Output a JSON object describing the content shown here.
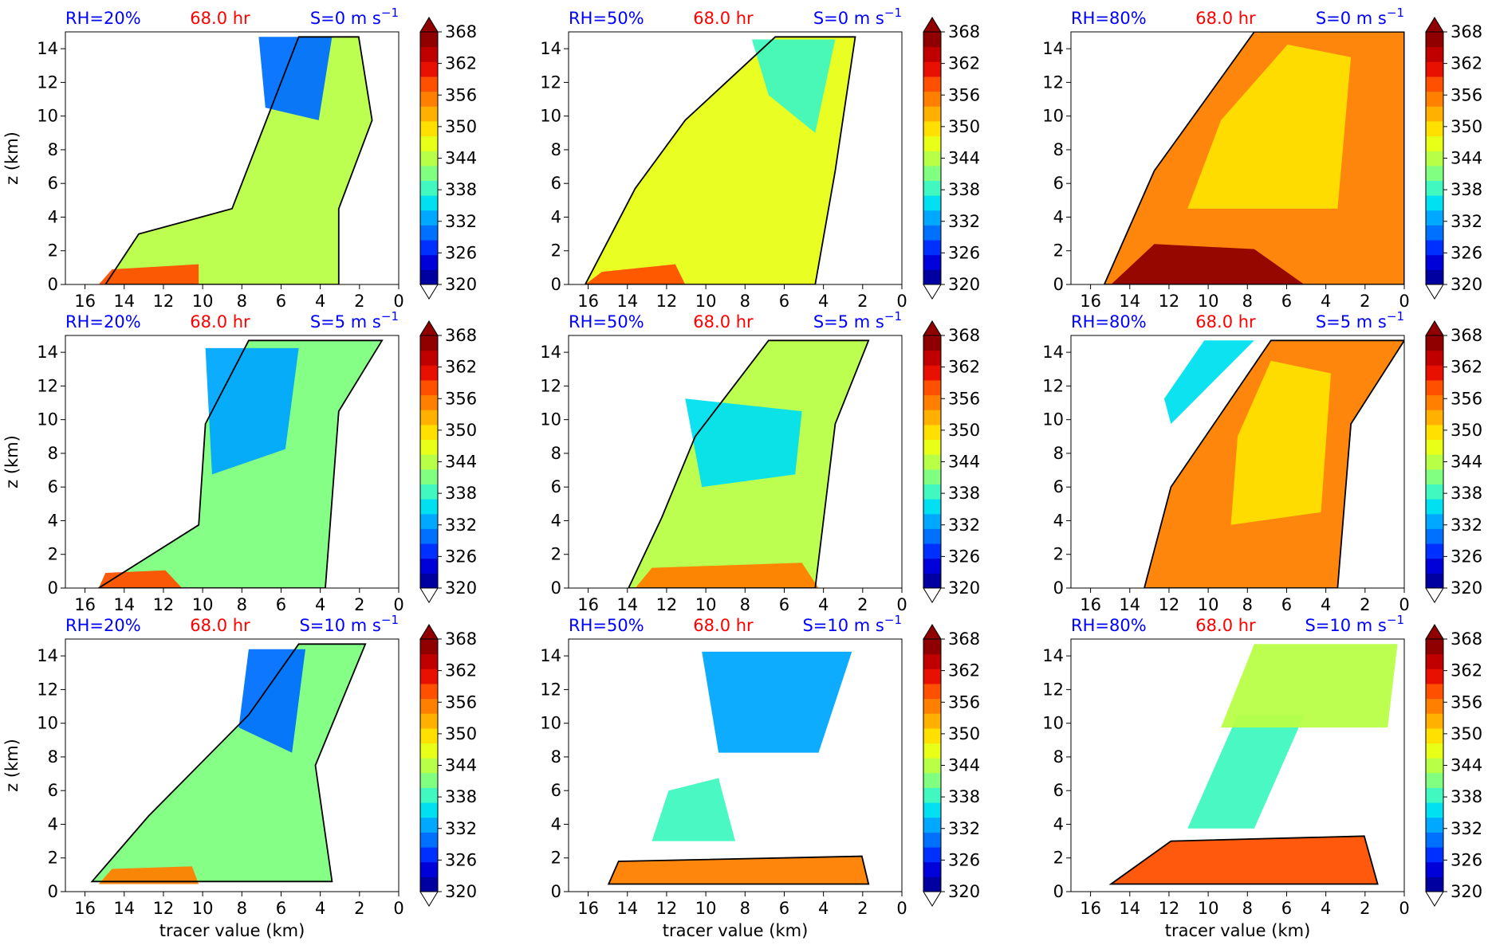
{
  "figure": {
    "colors": {
      "rh_label": "#0000ff",
      "time_label": "#ff0000",
      "shear_label": "#0000ff",
      "contour": "#000000",
      "colorbar": [
        "#0000a0",
        "#0000d8",
        "#0030ff",
        "#0070ff",
        "#00a8ff",
        "#00e0f0",
        "#40f8c0",
        "#80ff80",
        "#b8ff48",
        "#e8ff18",
        "#ffe000",
        "#ffb000",
        "#ff8000",
        "#ff5000",
        "#e81000",
        "#c00000",
        "#900000"
      ]
    }
  },
  "chart_data": [
    {
      "type": "heatmap",
      "rh_label": "RH=20%",
      "time_label": "68.0 hr",
      "shear_label": "S=0 m s",
      "shear_exp": "−1",
      "xlabel": "",
      "ylabel": "z (km)",
      "xlim": [
        17,
        0
      ],
      "ylim": [
        0,
        15
      ],
      "x_ticks": [
        "16",
        "14",
        "12",
        "10",
        "8",
        "6",
        "4",
        "2",
        "0"
      ],
      "y_ticks": [
        "0",
        "2",
        "4",
        "6",
        "8",
        "10",
        "12",
        "14"
      ],
      "colorbar": {
        "ticks": [
          "320",
          "326",
          "332",
          "338",
          "344",
          "350",
          "356",
          "362",
          "368"
        ],
        "range": [
          320,
          368
        ],
        "extend": "both"
      },
      "series": []
    },
    {
      "type": "heatmap",
      "rh_label": "RH=50%",
      "time_label": "68.0 hr",
      "shear_label": "S=0 m s",
      "shear_exp": "−1",
      "xlabel": "",
      "ylabel": "",
      "xlim": [
        17,
        0
      ],
      "ylim": [
        0,
        15
      ],
      "x_ticks": [
        "16",
        "14",
        "12",
        "10",
        "8",
        "6",
        "4",
        "2",
        "0"
      ],
      "y_ticks": [
        "0",
        "2",
        "4",
        "6",
        "8",
        "10",
        "12",
        "14"
      ],
      "colorbar": {
        "ticks": [
          "320",
          "326",
          "332",
          "338",
          "344",
          "350",
          "356",
          "362",
          "368"
        ],
        "range": [
          320,
          368
        ],
        "extend": "both"
      },
      "series": []
    },
    {
      "type": "heatmap",
      "rh_label": "RH=80%",
      "time_label": "68.0 hr",
      "shear_label": "S=0 m s",
      "shear_exp": "−1",
      "xlabel": "",
      "ylabel": "",
      "xlim": [
        17,
        0
      ],
      "ylim": [
        0,
        15
      ],
      "x_ticks": [
        "16",
        "14",
        "12",
        "10",
        "8",
        "6",
        "4",
        "2",
        "0"
      ],
      "y_ticks": [
        "0",
        "2",
        "4",
        "6",
        "8",
        "10",
        "12",
        "14"
      ],
      "colorbar": {
        "ticks": [
          "320",
          "326",
          "332",
          "338",
          "344",
          "350",
          "356",
          "362",
          "368"
        ],
        "range": [
          320,
          368
        ],
        "extend": "both"
      },
      "series": []
    },
    {
      "type": "heatmap",
      "rh_label": "RH=20%",
      "time_label": "68.0 hr",
      "shear_label": "S=5 m s",
      "shear_exp": "−1",
      "xlabel": "",
      "ylabel": "z (km)",
      "xlim": [
        17,
        0
      ],
      "ylim": [
        0,
        15
      ],
      "x_ticks": [
        "16",
        "14",
        "12",
        "10",
        "8",
        "6",
        "4",
        "2",
        "0"
      ],
      "y_ticks": [
        "0",
        "2",
        "4",
        "6",
        "8",
        "10",
        "12",
        "14"
      ],
      "colorbar": {
        "ticks": [
          "320",
          "326",
          "332",
          "338",
          "344",
          "350",
          "356",
          "362",
          "368"
        ],
        "range": [
          320,
          368
        ],
        "extend": "both"
      },
      "series": []
    },
    {
      "type": "heatmap",
      "rh_label": "RH=50%",
      "time_label": "68.0 hr",
      "shear_label": "S=5 m s",
      "shear_exp": "−1",
      "xlabel": "",
      "ylabel": "",
      "xlim": [
        17,
        0
      ],
      "ylim": [
        0,
        15
      ],
      "x_ticks": [
        "16",
        "14",
        "12",
        "10",
        "8",
        "6",
        "4",
        "2",
        "0"
      ],
      "y_ticks": [
        "0",
        "2",
        "4",
        "6",
        "8",
        "10",
        "12",
        "14"
      ],
      "colorbar": {
        "ticks": [
          "320",
          "326",
          "332",
          "338",
          "344",
          "350",
          "356",
          "362",
          "368"
        ],
        "range": [
          320,
          368
        ],
        "extend": "both"
      },
      "series": []
    },
    {
      "type": "heatmap",
      "rh_label": "RH=80%",
      "time_label": "68.0 hr",
      "shear_label": "S=5 m s",
      "shear_exp": "−1",
      "xlabel": "",
      "ylabel": "",
      "xlim": [
        17,
        0
      ],
      "ylim": [
        0,
        15
      ],
      "x_ticks": [
        "16",
        "14",
        "12",
        "10",
        "8",
        "6",
        "4",
        "2",
        "0"
      ],
      "y_ticks": [
        "0",
        "2",
        "4",
        "6",
        "8",
        "10",
        "12",
        "14"
      ],
      "colorbar": {
        "ticks": [
          "320",
          "326",
          "332",
          "338",
          "344",
          "350",
          "356",
          "362",
          "368"
        ],
        "range": [
          320,
          368
        ],
        "extend": "both"
      },
      "series": []
    },
    {
      "type": "heatmap",
      "rh_label": "RH=20%",
      "time_label": "68.0 hr",
      "shear_label": "S=10 m s",
      "shear_exp": "−1",
      "xlabel": "tracer value (km)",
      "ylabel": "z (km)",
      "xlim": [
        17,
        0
      ],
      "ylim": [
        0,
        15
      ],
      "x_ticks": [
        "16",
        "14",
        "12",
        "10",
        "8",
        "6",
        "4",
        "2",
        "0"
      ],
      "y_ticks": [
        "0",
        "2",
        "4",
        "6",
        "8",
        "10",
        "12",
        "14"
      ],
      "colorbar": {
        "ticks": [
          "320",
          "326",
          "332",
          "338",
          "344",
          "350",
          "356",
          "362",
          "368"
        ],
        "range": [
          320,
          368
        ],
        "extend": "both"
      },
      "series": []
    },
    {
      "type": "heatmap",
      "rh_label": "RH=50%",
      "time_label": "68.0 hr",
      "shear_label": "S=10 m s",
      "shear_exp": "−1",
      "xlabel": "tracer value (km)",
      "ylabel": "",
      "xlim": [
        17,
        0
      ],
      "ylim": [
        0,
        15
      ],
      "x_ticks": [
        "16",
        "14",
        "12",
        "10",
        "8",
        "6",
        "4",
        "2",
        "0"
      ],
      "y_ticks": [
        "0",
        "2",
        "4",
        "6",
        "8",
        "10",
        "12",
        "14"
      ],
      "colorbar": {
        "ticks": [
          "320",
          "326",
          "332",
          "338",
          "344",
          "350",
          "356",
          "362",
          "368"
        ],
        "range": [
          320,
          368
        ],
        "extend": "both"
      },
      "series": []
    },
    {
      "type": "heatmap",
      "rh_label": "RH=80%",
      "time_label": "68.0 hr",
      "shear_label": "S=10 m s",
      "shear_exp": "−1",
      "xlabel": "tracer value (km)",
      "ylabel": "",
      "xlim": [
        17,
        0
      ],
      "ylim": [
        0,
        15
      ],
      "x_ticks": [
        "16",
        "14",
        "12",
        "10",
        "8",
        "6",
        "4",
        "2",
        "0"
      ],
      "y_ticks": [
        "0",
        "2",
        "4",
        "6",
        "8",
        "10",
        "12",
        "14"
      ],
      "colorbar": {
        "ticks": [
          "320",
          "326",
          "332",
          "338",
          "344",
          "350",
          "356",
          "362",
          "368"
        ],
        "range": [
          320,
          368
        ],
        "extend": "both"
      },
      "series": []
    }
  ]
}
